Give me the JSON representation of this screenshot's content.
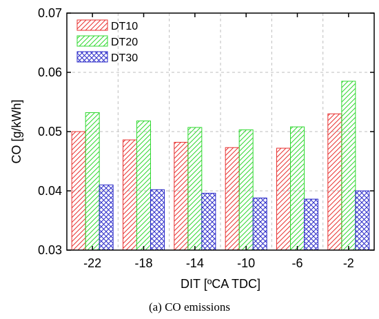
{
  "chart_data": {
    "type": "bar",
    "categories": [
      "-22",
      "-18",
      "-14",
      "-10",
      "-6",
      "-2"
    ],
    "series": [
      {
        "name": "DT10",
        "values": [
          0.05,
          0.0486,
          0.0482,
          0.0473,
          0.0472,
          0.053
        ],
        "color": "#e8302f",
        "pattern": "diagonal-hatch-down"
      },
      {
        "name": "DT20",
        "values": [
          0.0532,
          0.0518,
          0.0507,
          0.0503,
          0.0508,
          0.0585
        ],
        "color": "#2fd82f",
        "pattern": "diagonal-hatch-down"
      },
      {
        "name": "DT30",
        "values": [
          0.041,
          0.0402,
          0.0396,
          0.0388,
          0.0386,
          0.04
        ],
        "color": "#2a2ac8",
        "pattern": "cross-hatch"
      }
    ],
    "xlabel": "DIT [ºCA TDC]",
    "ylabel": "CO [g/kWh]",
    "ylim": [
      0.03,
      0.07
    ],
    "yticks": [
      "0.03",
      "0.04",
      "0.05",
      "0.06",
      "0.07"
    ],
    "grid": true,
    "legend_position": "top-left"
  },
  "caption": "(a) CO emissions"
}
